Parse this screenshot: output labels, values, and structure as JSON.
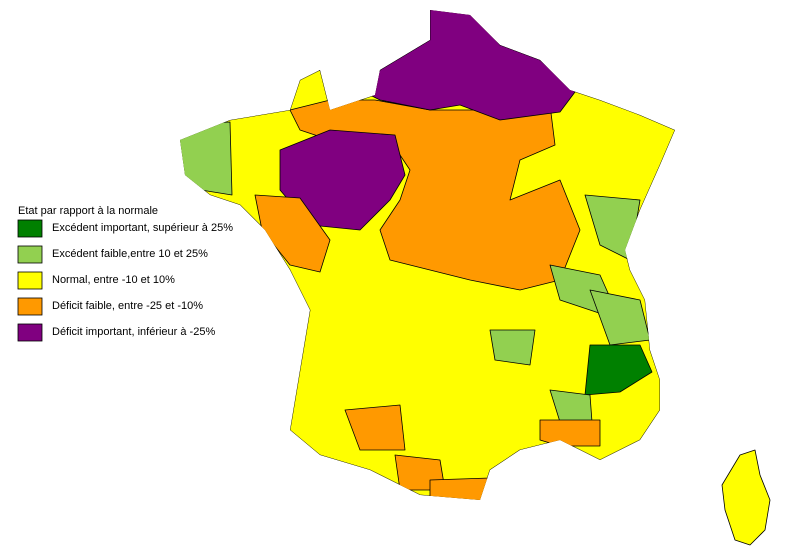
{
  "legend": {
    "title": "Etat par rapport à la normale",
    "items": [
      {
        "label": "Excédent important, supérieur à 25%",
        "color": "#008000"
      },
      {
        "label": "Excédent faible,entre 10 et 25%",
        "color": "#92d050"
      },
      {
        "label": "Normal, entre -10 et 10%",
        "color": "#ffff00"
      },
      {
        "label": "Déficit faible, entre -25 et -10%",
        "color": "#ff9900"
      },
      {
        "label": "Déficit important, inférieur à -25%",
        "color": "#800080"
      }
    ]
  }
}
